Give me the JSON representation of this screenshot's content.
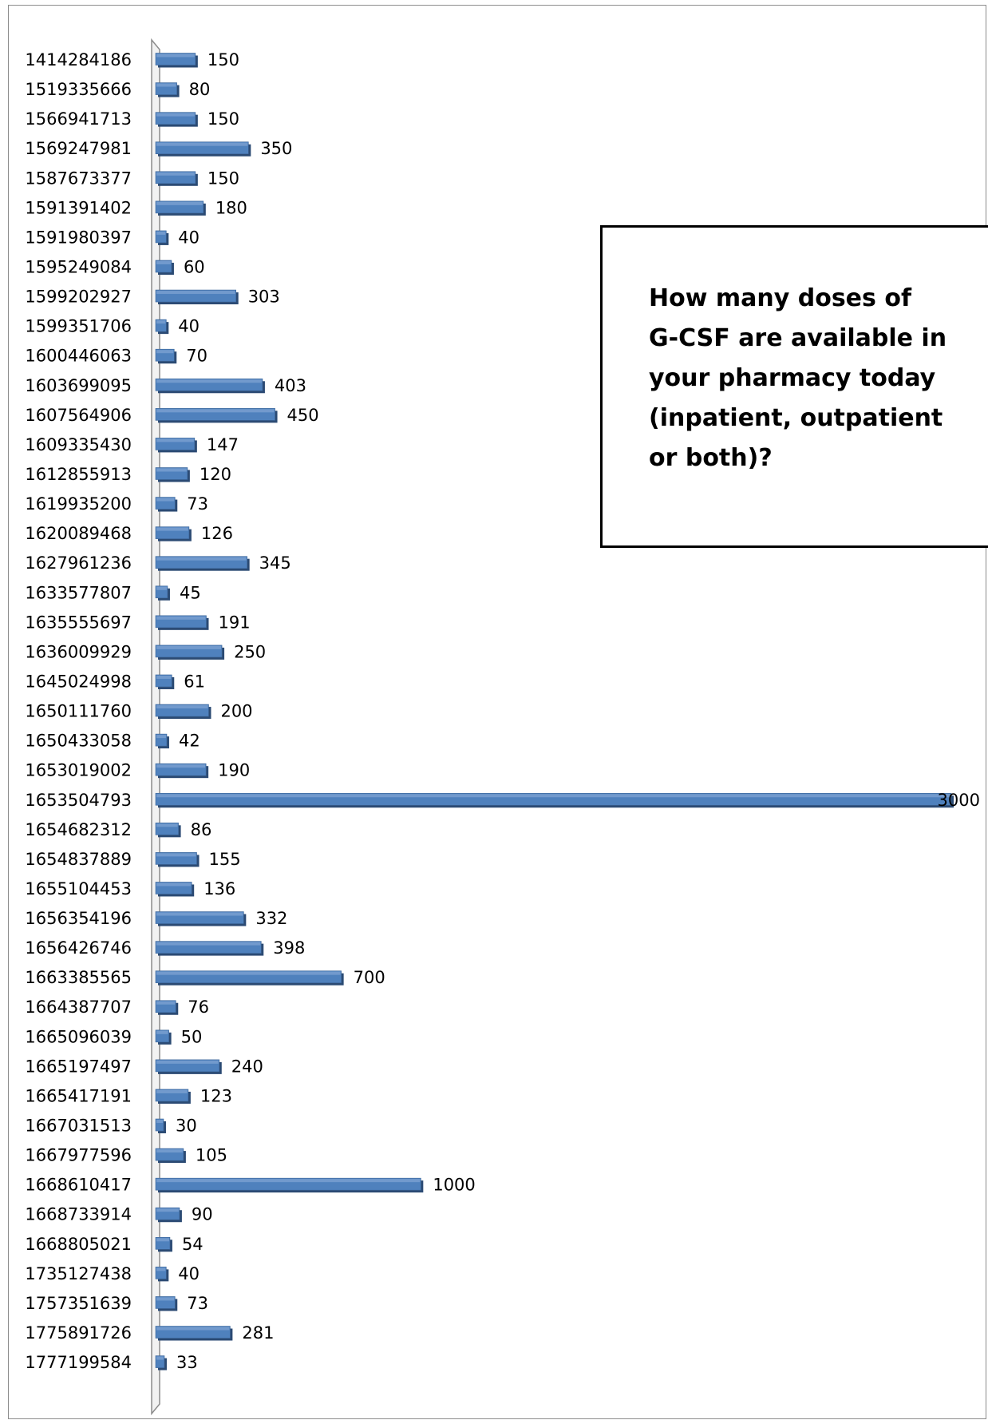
{
  "chart_data": {
    "type": "bar",
    "orientation": "horizontal",
    "title": "",
    "xlabel": "",
    "ylabel": "",
    "legend": "none",
    "grid": false,
    "xlim": [
      0,
      3000
    ],
    "bar_color": "#4f81bd",
    "categories": [
      "1414284186",
      "1519335666",
      "1566941713",
      "1569247981",
      "1587673377",
      "1591391402",
      "1591980397",
      "1595249084",
      "1599202927",
      "1599351706",
      "1600446063",
      "1603699095",
      "1607564906",
      "1609335430",
      "1612855913",
      "1619935200",
      "1620089468",
      "1627961236",
      "1633577807",
      "1635555697",
      "1636009929",
      "1645024998",
      "1650111760",
      "1650433058",
      "1653019002",
      "1653504793",
      "1654682312",
      "1654837889",
      "1655104453",
      "1656354196",
      "1656426746",
      "1663385565",
      "1664387707",
      "1665096039",
      "1665197497",
      "1665417191",
      "1667031513",
      "1667977596",
      "1668610417",
      "1668733914",
      "1668805021",
      "1735127438",
      "1757351639",
      "1775891726",
      "1777199584"
    ],
    "values": [
      150,
      80,
      150,
      350,
      150,
      180,
      40,
      60,
      303,
      40,
      70,
      403,
      450,
      147,
      120,
      73,
      126,
      345,
      45,
      191,
      250,
      61,
      200,
      42,
      190,
      3000,
      86,
      155,
      136,
      332,
      398,
      700,
      76,
      50,
      240,
      123,
      30,
      105,
      1000,
      90,
      54,
      40,
      73,
      281,
      33
    ],
    "value_labels": [
      "150",
      "80",
      "150",
      "350",
      "150",
      "180",
      "40",
      "60",
      "303",
      "40",
      "70",
      "403",
      "450",
      "147",
      "120",
      "73",
      "126",
      "345",
      "45",
      "191",
      "250",
      "61",
      "200",
      "42",
      "190",
      "3000",
      "86",
      "155",
      "136",
      "332",
      "398",
      "700",
      "76",
      "50",
      "240",
      "123",
      "30",
      "105",
      "1000",
      "90",
      "54",
      "40",
      "73",
      "281",
      "33"
    ]
  },
  "annotation": {
    "text": "How many doses of\n G-CSF are available in\nyour pharmacy today\n(inpatient, outpatient\nor both)?"
  }
}
